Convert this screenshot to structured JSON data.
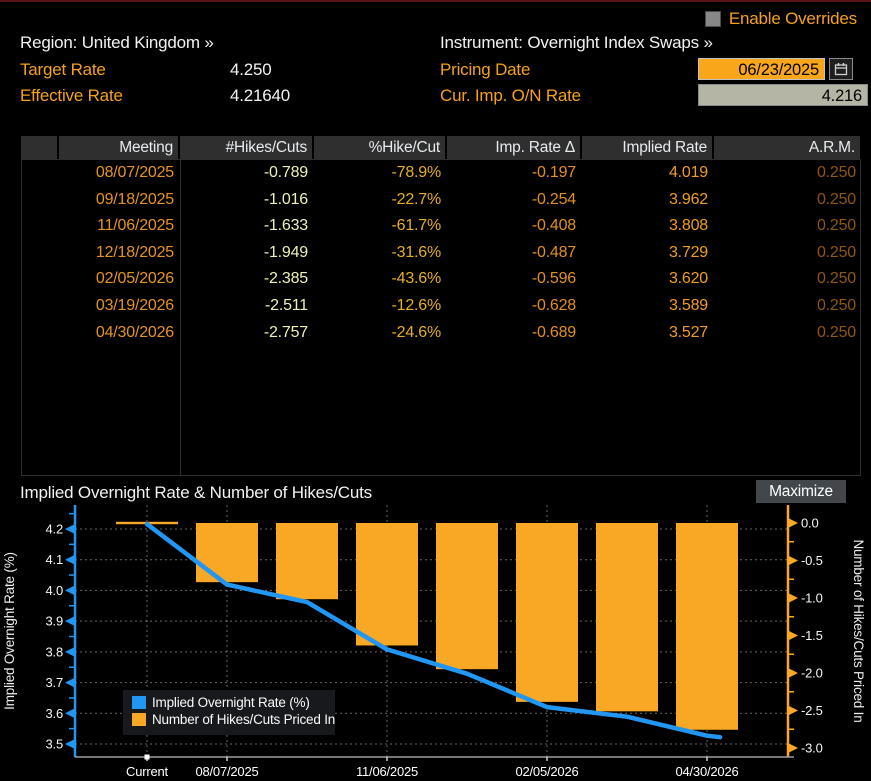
{
  "colors": {
    "amber": "#f5a11d",
    "chart_blue": "#2196f3",
    "chart_orange": "#f9a825",
    "date_field_bg": "#f9a61b",
    "readonly_field_bg": "#b5b5a5",
    "header_row_bg": "#2f2f2f",
    "top_line": "#5a1313"
  },
  "header": {
    "enable_overrides_label": "Enable Overrides",
    "region_label": "Region:",
    "region_value": "United Kingdom »",
    "instrument_label": "Instrument:",
    "instrument_value": "Overnight Index Swaps »",
    "target_rate_label": "Target Rate",
    "target_rate_value": "4.250",
    "effective_rate_label": "Effective Rate",
    "effective_rate_value": "4.21640",
    "pricing_date_label": "Pricing Date",
    "pricing_date_value": "06/23/2025",
    "calendar_icon": "calendar-icon",
    "cur_imp_on_rate_label": "Cur. Imp. O/N Rate",
    "cur_imp_on_rate_value": "4.216"
  },
  "table": {
    "columns": [
      "Meeting",
      "#Hikes/Cuts",
      "%Hike/Cut",
      "Imp. Rate Δ",
      "Implied Rate",
      "A.R.M."
    ],
    "column_colors": [
      "#e5941f",
      "#eff1b4",
      "#e6af24",
      "#e2901c",
      "#f09d24",
      "#8f5512"
    ],
    "rows": [
      [
        "08/07/2025",
        "-0.789",
        "-78.9%",
        "-0.197",
        "4.019",
        "0.250"
      ],
      [
        "09/18/2025",
        "-1.016",
        "-22.7%",
        "-0.254",
        "3.962",
        "0.250"
      ],
      [
        "11/06/2025",
        "-1.633",
        "-61.7%",
        "-0.408",
        "3.808",
        "0.250"
      ],
      [
        "12/18/2025",
        "-1.949",
        "-31.6%",
        "-0.487",
        "3.729",
        "0.250"
      ],
      [
        "02/05/2026",
        "-2.385",
        "-43.6%",
        "-0.596",
        "3.620",
        "0.250"
      ],
      [
        "03/19/2026",
        "-2.511",
        "-12.6%",
        "-0.628",
        "3.589",
        "0.250"
      ],
      [
        "04/30/2026",
        "-2.757",
        "-24.6%",
        "-0.689",
        "3.527",
        "0.250"
      ]
    ]
  },
  "chart": {
    "title": "Implied Overnight Rate & Number of Hikes/Cuts",
    "maximize_label": "Maximize"
  },
  "chart_data": {
    "type": "combo",
    "title": "Implied Overnight Rate & Number of Hikes/Cuts",
    "x_categories": [
      "Current",
      "08/07/2025",
      "09/18/2025",
      "11/06/2025",
      "12/18/2025",
      "02/05/2026",
      "03/19/2026",
      "04/30/2026"
    ],
    "x_labels_shown": [
      {
        "index": 0,
        "label": "Current"
      },
      {
        "index": 1,
        "label": "08/07/2025"
      },
      {
        "index": 3,
        "label": "11/06/2025"
      },
      {
        "index": 5,
        "label": "02/05/2026"
      },
      {
        "index": 7,
        "label": "04/30/2026"
      }
    ],
    "series": [
      {
        "name": "Implied Overnight Rate (%)",
        "type": "line",
        "axis": "left",
        "color": "#2196f3",
        "values": [
          4.216,
          4.019,
          3.962,
          3.808,
          3.729,
          3.62,
          3.589,
          3.527
        ]
      },
      {
        "name": "Number of Hikes/Cuts Priced In",
        "type": "bar",
        "axis": "right",
        "color": "#f9a825",
        "values": [
          0,
          -0.789,
          -1.016,
          -1.633,
          -1.949,
          -2.385,
          -2.511,
          -2.757
        ]
      }
    ],
    "left_axis": {
      "label": "Implied Overnight Rate (%)",
      "tick_labels": [
        "4.2",
        "4.1",
        "4.0",
        "3.9",
        "3.8",
        "3.7",
        "3.6",
        "3.5"
      ],
      "ticks": [
        4.2,
        4.1,
        4.0,
        3.9,
        3.8,
        3.7,
        3.6,
        3.5
      ],
      "range": [
        3.455,
        4.285
      ]
    },
    "right_axis": {
      "label": "Number of Hikes/Cuts Priced In",
      "tick_labels": [
        "0.0",
        "-0.5",
        "-1.0",
        "-1.5",
        "-2.0",
        "-2.5",
        "-3.0"
      ],
      "ticks": [
        0.0,
        -0.5,
        -1.0,
        -1.5,
        -2.0,
        -2.5,
        -3.0
      ],
      "range": [
        -3.12,
        0.27
      ]
    },
    "legend": [
      "Implied Overnight Rate (%)",
      "Number of Hikes/Cuts Priced In"
    ],
    "legend_position": "bottom-left",
    "grid": true
  }
}
